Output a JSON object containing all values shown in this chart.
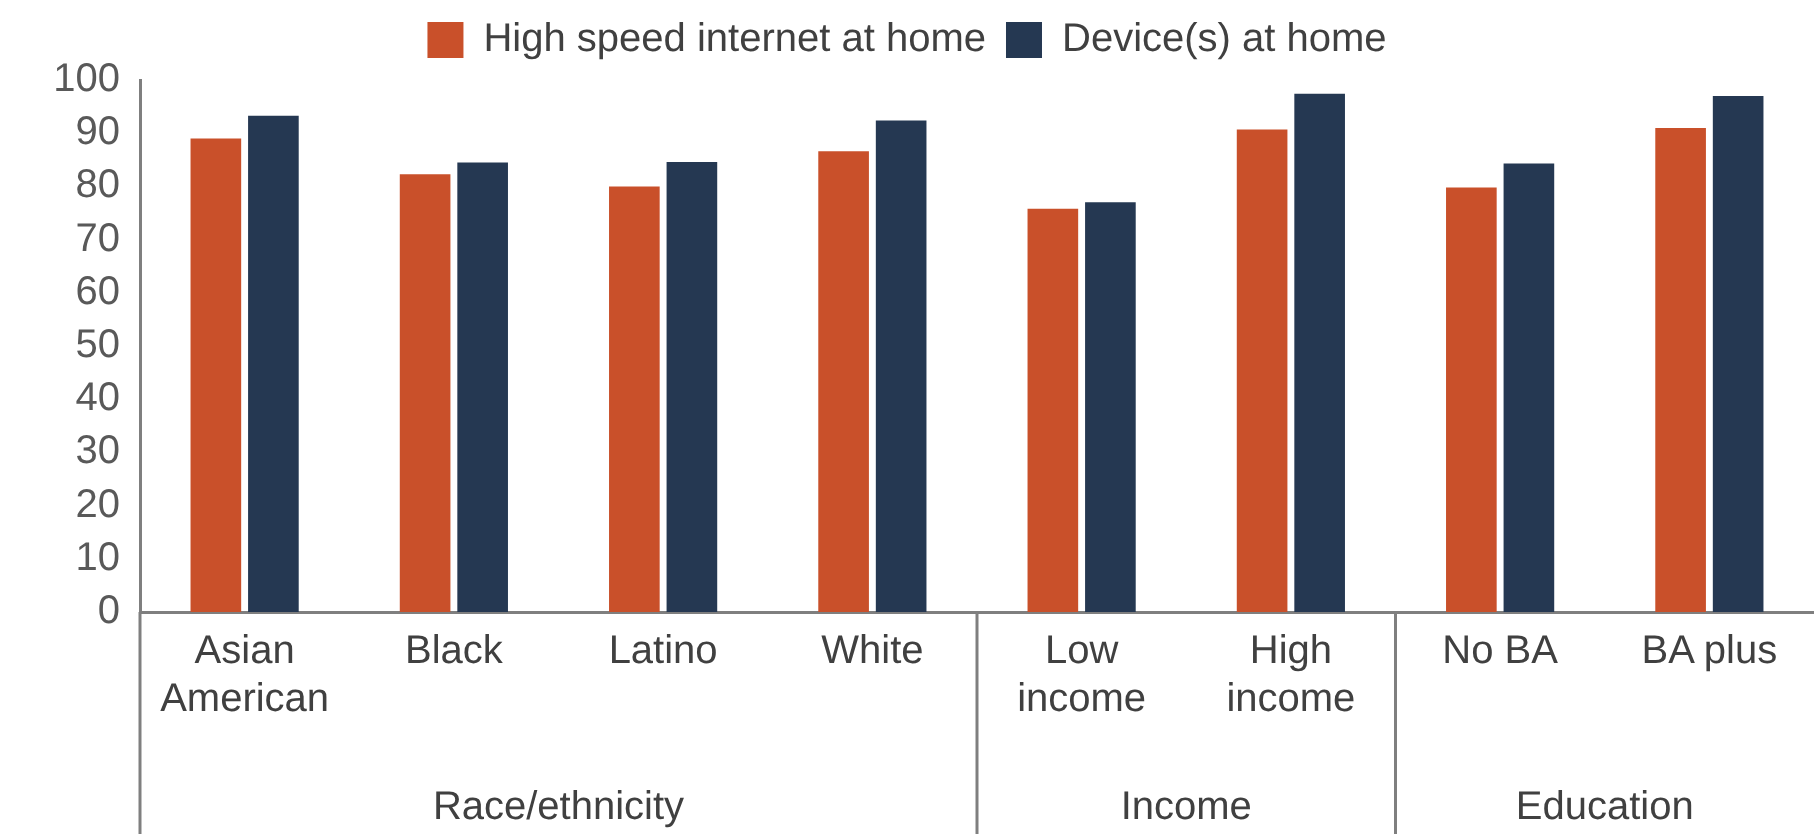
{
  "chart_data": {
    "type": "bar",
    "categories": [
      "Asian American",
      "Black",
      "Latino",
      "White",
      "Low income",
      "High income",
      "No BA",
      "BA plus"
    ],
    "series": [
      {
        "name": "High speed internet at home",
        "color": "#c9502a",
        "values": [
          89,
          82.3,
          80,
          86.6,
          75.8,
          90.7,
          79.8,
          91
        ]
      },
      {
        "name": "Device(s) at home",
        "color": "#253852",
        "values": [
          93.3,
          84.5,
          84.6,
          92.4,
          77,
          97.4,
          84.3,
          97
        ]
      }
    ],
    "ylim": [
      0,
      100
    ],
    "yticks": [
      0,
      10,
      20,
      30,
      40,
      50,
      60,
      70,
      80,
      90,
      100
    ],
    "grid": false,
    "legend": "top",
    "annotations": [
      "Race/ethnicity",
      "Income",
      "Education"
    ]
  }
}
